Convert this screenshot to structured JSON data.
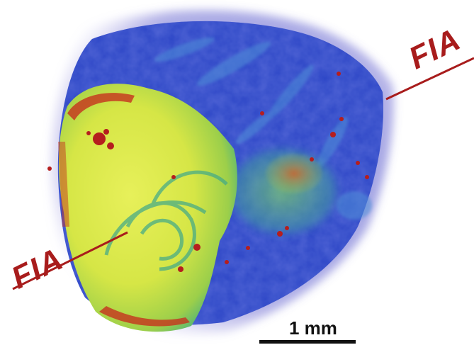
{
  "annotations": {
    "fia_right": "FIA",
    "fia_left": "FIA",
    "scale_bar_label": "1 mm"
  },
  "colors": {
    "annotation": "#a81c1c",
    "scale_bar": "#111111",
    "outer_blue": "#2a3fb8",
    "haze_purple": "#7a6fd0",
    "core_yellow": "#d8e84a",
    "ring_green": "#5cc07a",
    "inclusion_red": "#c0301e"
  }
}
